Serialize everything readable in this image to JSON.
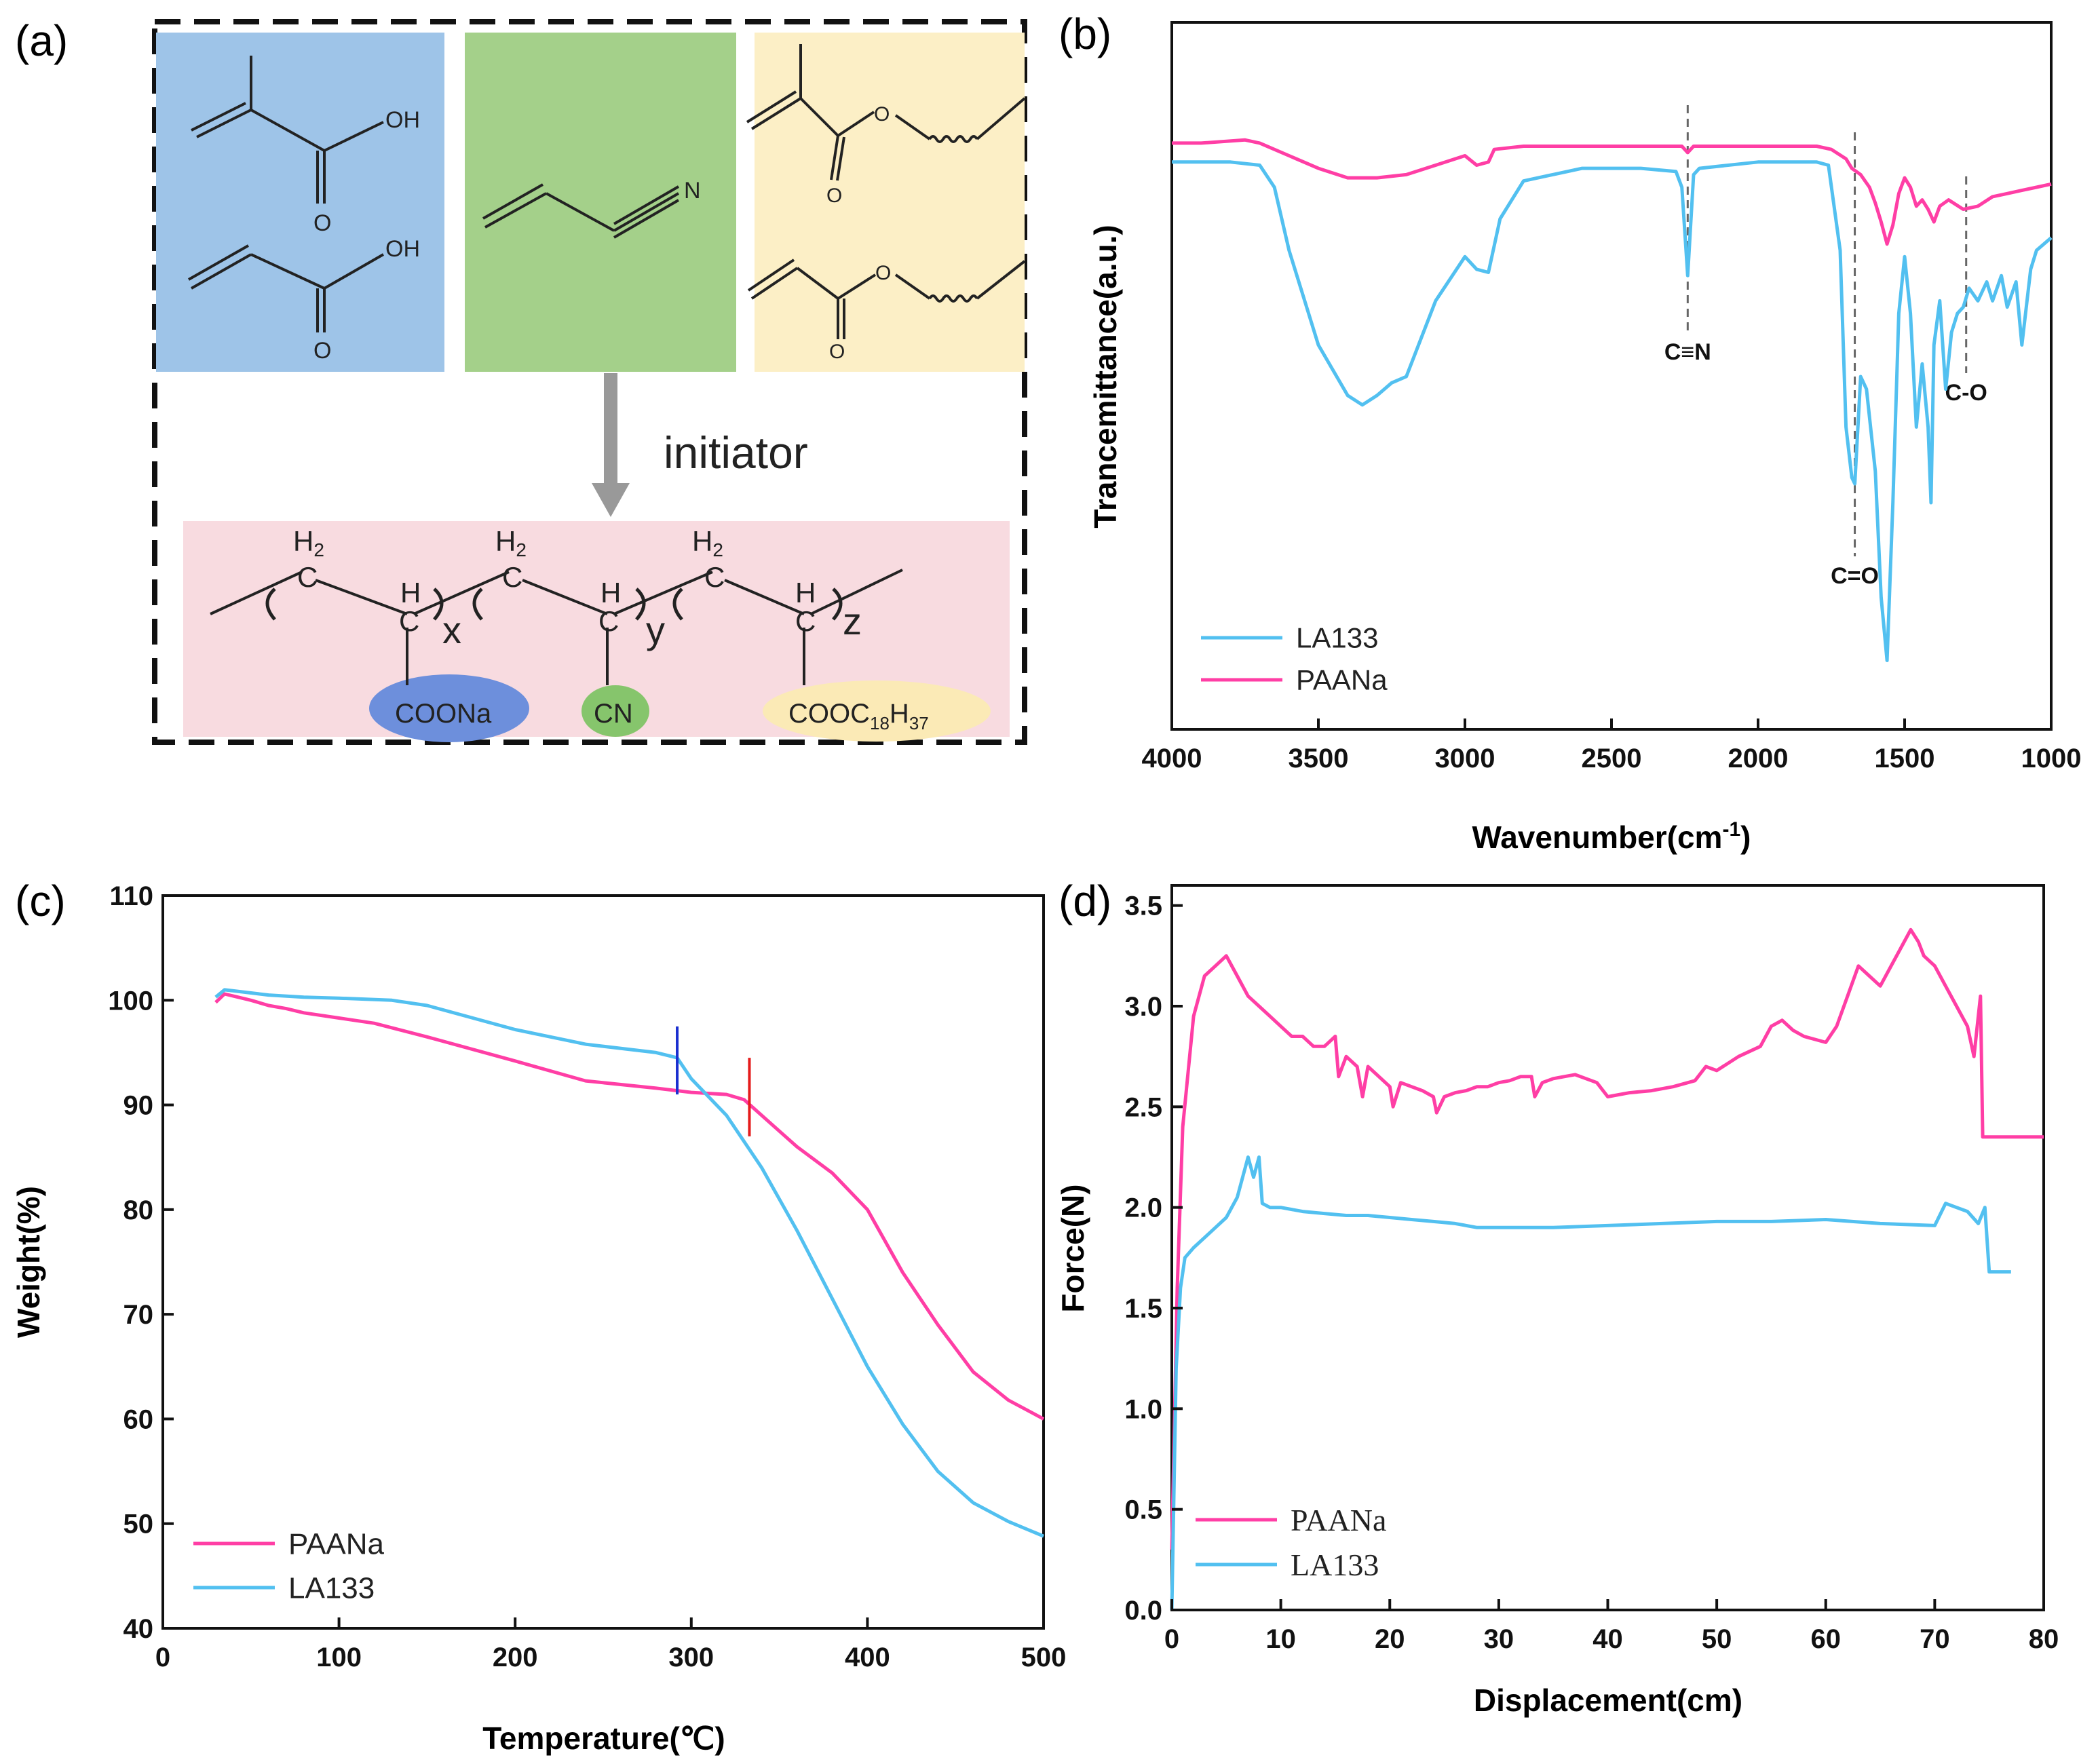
{
  "colors": {
    "paana": "#ff3ea5",
    "la133": "#52c0f0",
    "marker_blue": "#1a2fd0",
    "marker_red": "#e51b1b",
    "acid_box": "#9ec4e8",
    "nitrile_box": "#a4d08a",
    "ester_box": "#fcefc6",
    "polymer_box": "#f8dbe0",
    "coona_ellipse": "#6d8fdc",
    "cn_ellipse": "#86c56c",
    "cooc_ellipse": "#fbeab6"
  },
  "panel_a": {
    "label": "(a)",
    "oh_top": "OH",
    "o_top": "O",
    "oh_bottom": "OH",
    "o_bottom": "O",
    "n": "N",
    "ester_o_ring_top": "O",
    "ester_o_carbonyl_top": "O",
    "ester_o_ring_bottom": "O",
    "ester_o_carbonyl_bottom": "O",
    "arrow_label": "initiator",
    "h2_1": "H",
    "h2_sub_1": "2",
    "c_1": "C",
    "h_1": "H",
    "c_2": "C",
    "x": "x",
    "h2_2": "H",
    "h2_sub_2": "2",
    "c_3": "C",
    "h_2": "H",
    "c_4": "C",
    "y": "y",
    "h2_3": "H",
    "h2_sub_3": "2",
    "c_5": "C",
    "h_3": "H",
    "c_6": "C",
    "z": "z",
    "sub_coona": "COONa",
    "sub_cn": "CN",
    "sub_cooc": "COOC",
    "sub_cooc_18": "18",
    "sub_cooc_h": "H",
    "sub_cooc_37": "37"
  },
  "chart_data": [
    {
      "panel": "(b)",
      "type": "line",
      "xlabel": "Wavenumber(cm",
      "xlabel_sup": "-1",
      "xlabel_end": ")",
      "ylabel": "Trancemittance(a.u.)",
      "xlim": [
        4000,
        1000
      ],
      "xticks": [
        "4000",
        "3500",
        "3000",
        "2500",
        "2000",
        "1500",
        "1000"
      ],
      "legend": [
        "LA133",
        "PAANa"
      ],
      "legend_position": "bottom-left",
      "annotations": [
        {
          "text": "C≡N",
          "x": 2240
        },
        {
          "text": "C=O",
          "x": 1670
        },
        {
          "text": "C-O",
          "x": 1290
        }
      ],
      "series": [
        {
          "name": "PAANa",
          "x": [
            4000,
            3900,
            3750,
            3700,
            3600,
            3500,
            3400,
            3300,
            3200,
            3100,
            3000,
            2960,
            2920,
            2900,
            2800,
            2500,
            2260,
            2240,
            2220,
            2000,
            1800,
            1750,
            1700,
            1680,
            1650,
            1620,
            1600,
            1580,
            1560,
            1540,
            1520,
            1500,
            1480,
            1460,
            1440,
            1420,
            1400,
            1380,
            1350,
            1300,
            1250,
            1200,
            1150,
            1100,
            1050,
            1000
          ],
          "values": [
            0.87,
            0.87,
            0.875,
            0.87,
            0.85,
            0.83,
            0.815,
            0.815,
            0.82,
            0.835,
            0.85,
            0.835,
            0.84,
            0.86,
            0.865,
            0.865,
            0.865,
            0.855,
            0.865,
            0.865,
            0.865,
            0.86,
            0.845,
            0.83,
            0.82,
            0.8,
            0.775,
            0.745,
            0.71,
            0.74,
            0.79,
            0.815,
            0.8,
            0.77,
            0.78,
            0.765,
            0.745,
            0.77,
            0.78,
            0.765,
            0.77,
            0.785,
            0.79,
            0.795,
            0.8,
            0.805
          ]
        },
        {
          "name": "LA133",
          "x": [
            4000,
            3800,
            3700,
            3650,
            3600,
            3500,
            3400,
            3350,
            3300,
            3250,
            3200,
            3100,
            3000,
            2960,
            2920,
            2880,
            2800,
            2600,
            2400,
            2280,
            2260,
            2240,
            2220,
            2200,
            2000,
            1800,
            1760,
            1720,
            1700,
            1680,
            1670,
            1650,
            1630,
            1600,
            1580,
            1560,
            1540,
            1520,
            1500,
            1480,
            1460,
            1440,
            1420,
            1410,
            1400,
            1380,
            1360,
            1340,
            1320,
            1300,
            1280,
            1250,
            1220,
            1200,
            1170,
            1150,
            1120,
            1100,
            1070,
            1050,
            1000
          ],
          "values": [
            0.84,
            0.84,
            0.835,
            0.8,
            0.7,
            0.55,
            0.47,
            0.455,
            0.47,
            0.49,
            0.5,
            0.62,
            0.69,
            0.67,
            0.665,
            0.75,
            0.81,
            0.83,
            0.83,
            0.825,
            0.8,
            0.66,
            0.82,
            0.83,
            0.84,
            0.84,
            0.835,
            0.7,
            0.42,
            0.34,
            0.33,
            0.5,
            0.48,
            0.35,
            0.15,
            0.05,
            0.3,
            0.6,
            0.69,
            0.6,
            0.42,
            0.52,
            0.42,
            0.3,
            0.55,
            0.62,
            0.48,
            0.57,
            0.6,
            0.61,
            0.64,
            0.62,
            0.65,
            0.62,
            0.66,
            0.61,
            0.65,
            0.55,
            0.67,
            0.7,
            0.72
          ]
        }
      ]
    },
    {
      "panel": "(c)",
      "type": "line",
      "xlabel": "Temperature(℃)",
      "ylabel": "Weight(%)",
      "xlim": [
        0,
        500
      ],
      "ylim": [
        40,
        110
      ],
      "xticks": [
        "0",
        "100",
        "200",
        "300",
        "400",
        "500"
      ],
      "yticks": [
        "40",
        "50",
        "60",
        "70",
        "80",
        "90",
        "100",
        "110"
      ],
      "legend": [
        "PAANa",
        "LA133"
      ],
      "legend_position": "bottom-left",
      "markers": [
        {
          "series": "LA133",
          "x": 292,
          "y_range": [
            91,
            97.5
          ]
        },
        {
          "series": "PAANa",
          "x": 333,
          "y_range": [
            87,
            94.5
          ]
        }
      ],
      "series": [
        {
          "name": "PAANa",
          "x": [
            30,
            35,
            40,
            50,
            60,
            70,
            80,
            100,
            120,
            150,
            200,
            240,
            280,
            300,
            320,
            330,
            340,
            360,
            380,
            400,
            420,
            440,
            460,
            480,
            500
          ],
          "values": [
            99.8,
            100.6,
            100.4,
            100.0,
            99.5,
            99.2,
            98.8,
            98.3,
            97.8,
            96.5,
            94.2,
            92.3,
            91.6,
            91.2,
            91.0,
            90.5,
            89.0,
            86.0,
            83.5,
            80.0,
            74.0,
            69.0,
            64.5,
            61.8,
            60.0
          ]
        },
        {
          "name": "LA133",
          "x": [
            30,
            35,
            40,
            50,
            60,
            80,
            100,
            130,
            150,
            200,
            240,
            280,
            292,
            300,
            320,
            340,
            360,
            380,
            400,
            420,
            440,
            460,
            480,
            500
          ],
          "values": [
            100.3,
            101.0,
            100.9,
            100.7,
            100.5,
            100.3,
            100.2,
            100.0,
            99.5,
            97.2,
            95.8,
            95.0,
            94.5,
            92.5,
            89.0,
            84.0,
            78.0,
            71.5,
            65.0,
            59.5,
            55.0,
            52.0,
            50.2,
            48.8
          ]
        }
      ]
    },
    {
      "panel": "(d)",
      "type": "line",
      "xlabel": "Displacement(cm)",
      "ylabel": "Force(N)",
      "xlim": [
        0,
        80
      ],
      "ylim": [
        0,
        3.6
      ],
      "xticks": [
        "0",
        "10",
        "20",
        "30",
        "40",
        "50",
        "60",
        "70",
        "80"
      ],
      "yticks": [
        "0.0",
        "0.5",
        "1.0",
        "1.5",
        "2.0",
        "2.5",
        "3.0",
        "3.5"
      ],
      "legend": [
        "PAANa",
        "LA133"
      ],
      "legend_position": "bottom-left",
      "series": [
        {
          "name": "PAANa",
          "x": [
            0,
            0.5,
            1,
            2,
            3,
            4,
            5,
            6,
            7,
            8,
            9,
            10,
            11,
            12,
            13,
            14,
            15,
            15.3,
            16,
            17,
            17.5,
            18,
            19,
            20,
            20.3,
            21,
            22,
            23,
            24,
            24.3,
            25,
            26,
            27,
            28,
            29,
            30,
            31,
            32,
            33,
            33.3,
            34,
            35,
            36,
            37,
            38,
            39,
            40,
            41,
            42,
            44,
            46,
            48,
            49,
            50,
            52,
            54,
            55,
            56,
            57,
            58,
            60,
            61,
            62,
            63,
            64,
            65,
            66,
            67,
            67.8,
            68.5,
            69,
            70,
            71,
            72,
            73,
            73.6,
            74,
            74.2,
            74.4,
            75,
            80
          ],
          "values": [
            0.3,
            1.6,
            2.4,
            2.95,
            3.15,
            3.2,
            3.25,
            3.15,
            3.05,
            3.0,
            2.95,
            2.9,
            2.85,
            2.85,
            2.8,
            2.8,
            2.85,
            2.65,
            2.75,
            2.7,
            2.55,
            2.7,
            2.65,
            2.6,
            2.5,
            2.62,
            2.6,
            2.58,
            2.55,
            2.47,
            2.55,
            2.57,
            2.58,
            2.6,
            2.6,
            2.62,
            2.63,
            2.65,
            2.65,
            2.55,
            2.62,
            2.64,
            2.65,
            2.66,
            2.64,
            2.62,
            2.55,
            2.56,
            2.57,
            2.58,
            2.6,
            2.63,
            2.7,
            2.68,
            2.75,
            2.8,
            2.9,
            2.93,
            2.88,
            2.85,
            2.82,
            2.9,
            3.05,
            3.2,
            3.15,
            3.1,
            3.2,
            3.3,
            3.38,
            3.32,
            3.25,
            3.2,
            3.1,
            3.0,
            2.9,
            2.75,
            2.95,
            3.05,
            2.35,
            2.35,
            2.35
          ]
        },
        {
          "name": "LA133",
          "x": [
            0,
            0.4,
            0.8,
            1.2,
            2,
            3,
            4,
            5,
            6,
            7,
            7.5,
            8,
            8.3,
            9,
            10,
            12,
            14,
            16,
            18,
            20,
            22,
            24,
            26,
            28,
            30,
            35,
            40,
            45,
            50,
            55,
            60,
            65,
            70,
            71,
            72,
            73,
            74,
            74.6,
            75,
            77
          ],
          "values": [
            0.0,
            1.2,
            1.6,
            1.75,
            1.8,
            1.85,
            1.9,
            1.95,
            2.05,
            2.25,
            2.15,
            2.25,
            2.02,
            2.0,
            2.0,
            1.98,
            1.97,
            1.96,
            1.96,
            1.95,
            1.94,
            1.93,
            1.92,
            1.9,
            1.9,
            1.9,
            1.91,
            1.92,
            1.93,
            1.93,
            1.94,
            1.92,
            1.91,
            2.02,
            2.0,
            1.98,
            1.92,
            2.0,
            1.68,
            1.68
          ]
        }
      ]
    }
  ]
}
